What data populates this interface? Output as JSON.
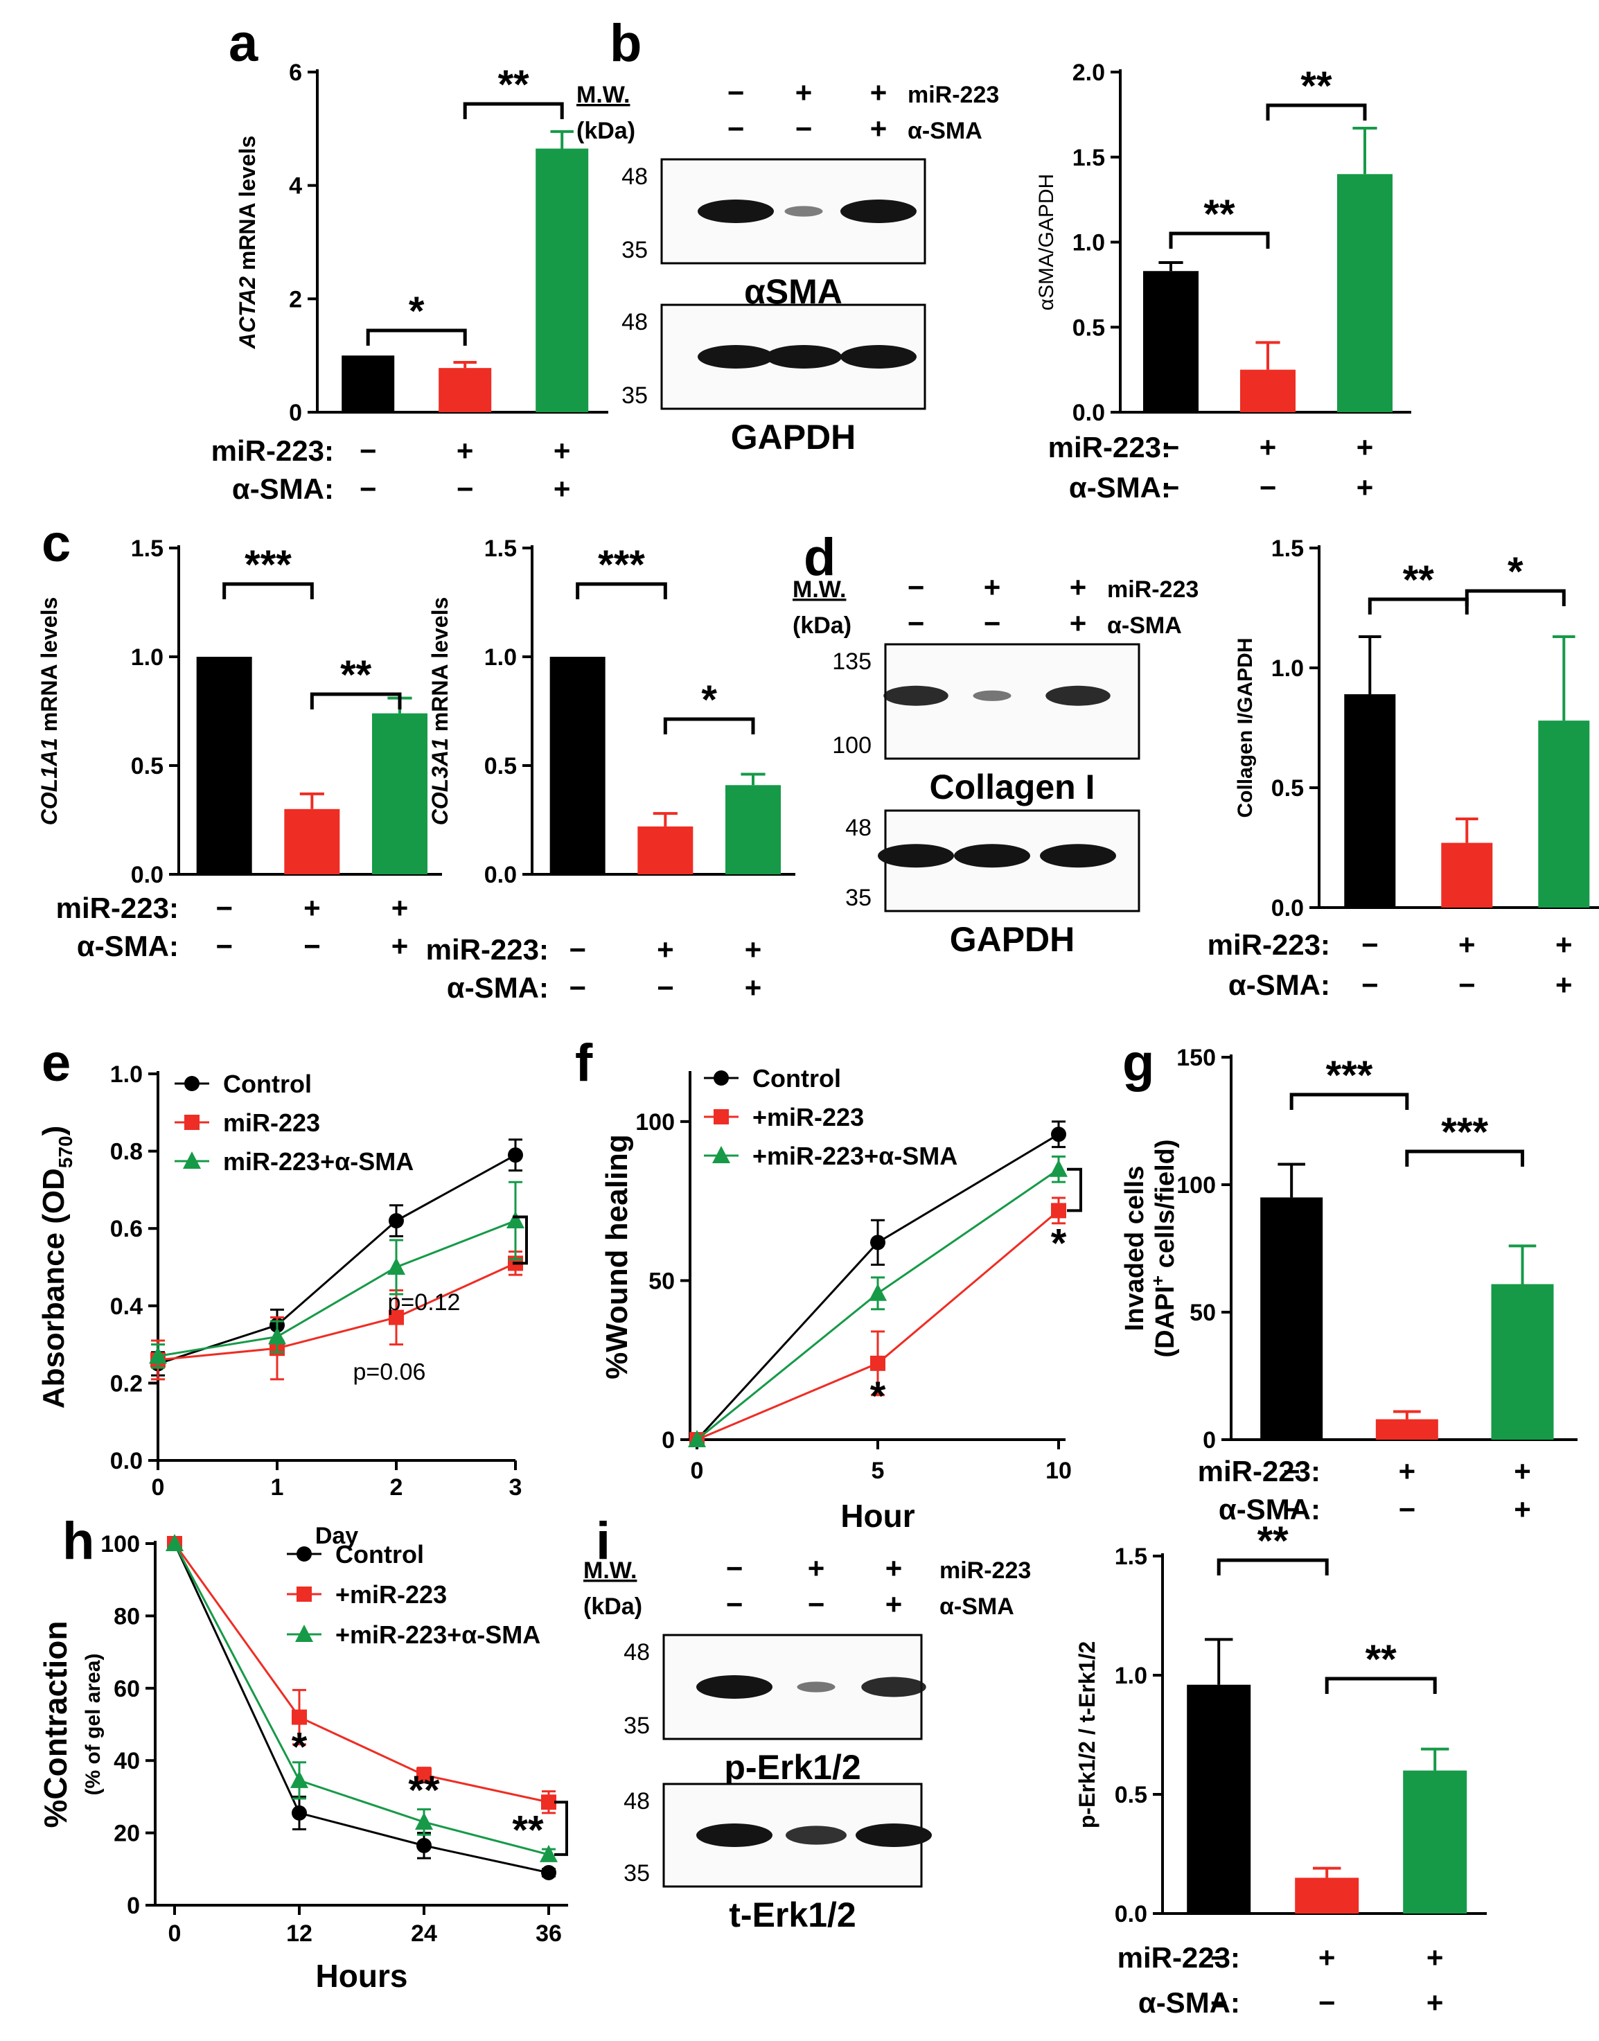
{
  "colors": {
    "black": "#000000",
    "red": "#ee2d24",
    "green": "#169a48",
    "blot_band": "#141414"
  },
  "panel_labels": [
    "a",
    "b",
    "c",
    "d",
    "e",
    "f",
    "g",
    "h",
    "i"
  ],
  "conditions": {
    "mir223_label": "miR-223:",
    "asma_label": "α-SMA:",
    "mir223_signs": [
      "−",
      "+",
      "+"
    ],
    "asma_signs": [
      "−",
      "−",
      "+"
    ]
  },
  "blots": {
    "mw_label": "M.W.",
    "kda_label": "(kDa)",
    "row_mir223": "miR-223",
    "row_asma": "α-SMA",
    "b": {
      "top_name": "αSMA",
      "bottom_name": "GAPDH",
      "top_mw": [
        "48",
        "35"
      ],
      "bottom_mw": [
        "48",
        "35"
      ],
      "top_intensity": [
        1.0,
        0.3,
        1.0
      ],
      "bottom_intensity": [
        1.0,
        1.0,
        1.0
      ]
    },
    "d": {
      "top_name": "Collagen I",
      "bottom_name": "GAPDH",
      "top_mw": [
        "135",
        "100"
      ],
      "bottom_mw": [
        "48",
        "35"
      ],
      "top_intensity": [
        0.85,
        0.35,
        0.85
      ],
      "bottom_intensity": [
        1.0,
        1.0,
        1.0
      ]
    },
    "i": {
      "top_name": "p-Erk1/2",
      "bottom_name": "t-Erk1/2",
      "top_mw": [
        "48",
        "35"
      ],
      "bottom_mw": [
        "48",
        "35"
      ],
      "top_intensity": [
        1.0,
        0.35,
        0.85
      ],
      "bottom_intensity": [
        1.0,
        0.8,
        1.0
      ]
    }
  },
  "chart_data": [
    {
      "id": "a",
      "type": "bar",
      "categories": [
        "Control",
        "miR-223",
        "miR-223+α-SMA"
      ],
      "values": [
        1.0,
        0.78,
        4.65
      ],
      "errors": [
        0.0,
        0.1,
        0.3
      ],
      "ylabel_italic": "ACTA2",
      "ylabel_rest": " mRNA levels",
      "ylim": [
        0,
        6
      ],
      "yticks": [
        "0",
        "2",
        "4",
        "6"
      ],
      "brackets": [
        {
          "from": 0,
          "to": 1,
          "label": "*"
        },
        {
          "from": 1,
          "to": 2,
          "label": "**"
        }
      ]
    },
    {
      "id": "b",
      "type": "bar",
      "categories": [
        "Control",
        "miR-223",
        "miR-223+α-SMA"
      ],
      "values": [
        0.83,
        0.25,
        1.4
      ],
      "errors": [
        0.05,
        0.16,
        0.27
      ],
      "ylabel_italic": "",
      "ylabel_rest": "αSMA/GAPDH",
      "ylim": [
        0,
        2
      ],
      "yticks": [
        "0.0",
        "0.5",
        "1.0",
        "1.5",
        "2.0"
      ],
      "brackets": [
        {
          "from": 0,
          "to": 1,
          "label": "**"
        },
        {
          "from": 1,
          "to": 2,
          "label": "**"
        }
      ]
    },
    {
      "id": "c1",
      "type": "bar",
      "categories": [
        "Control",
        "miR-223",
        "miR-223+α-SMA"
      ],
      "values": [
        1.0,
        0.3,
        0.74
      ],
      "errors": [
        0.0,
        0.07,
        0.07
      ],
      "ylabel_italic": "COL1A1",
      "ylabel_rest": " mRNA levels",
      "ylim": [
        0,
        1.5
      ],
      "yticks": [
        "0.0",
        "0.5",
        "1.0",
        "1.5"
      ],
      "brackets": [
        {
          "from": 0,
          "to": 1,
          "label": "***"
        },
        {
          "from": 1,
          "to": 2,
          "label": "**"
        }
      ]
    },
    {
      "id": "c2",
      "type": "bar",
      "categories": [
        "Control",
        "miR-223",
        "miR-223+α-SMA"
      ],
      "values": [
        1.0,
        0.22,
        0.41
      ],
      "errors": [
        0.0,
        0.06,
        0.05
      ],
      "ylabel_italic": "COL3A1",
      "ylabel_rest": " mRNA levels",
      "ylim": [
        0,
        1.5
      ],
      "yticks": [
        "0.0",
        "0.5",
        "1.0",
        "1.5"
      ],
      "brackets": [
        {
          "from": 0,
          "to": 1,
          "label": "***"
        },
        {
          "from": 1,
          "to": 2,
          "label": "*"
        }
      ]
    },
    {
      "id": "d",
      "type": "bar",
      "categories": [
        "Control",
        "miR-223",
        "miR-223+α-SMA"
      ],
      "values": [
        0.89,
        0.27,
        0.78
      ],
      "errors": [
        0.24,
        0.1,
        0.35
      ],
      "ylabel_italic": "",
      "ylabel_rest": "Collagen I/GAPDH",
      "ylim": [
        0,
        1.5
      ],
      "yticks": [
        "0.0",
        "0.5",
        "1.0",
        "1.5"
      ],
      "brackets": [
        {
          "from": 0,
          "to": 1,
          "label": "**"
        },
        {
          "from": 1,
          "to": 2,
          "label": "*"
        }
      ]
    },
    {
      "id": "e",
      "type": "line",
      "x": [
        0,
        1,
        2,
        3
      ],
      "xticks": [
        "0",
        "1",
        "2",
        "3"
      ],
      "xlabel": "Day",
      "ylabel": "Absorbance (OD",
      "ylabel_sub": "570",
      "ylabel_end": ")",
      "ylim": [
        0,
        1.0
      ],
      "yticks": [
        "0.0",
        "0.2",
        "0.4",
        "0.6",
        "0.8",
        "1.0"
      ],
      "series": [
        {
          "name": "Control",
          "marker": "circle",
          "values": [
            0.25,
            0.35,
            0.62,
            0.79
          ],
          "errors": [
            0.03,
            0.04,
            0.04,
            0.04
          ]
        },
        {
          "name": "miR-223",
          "marker": "square",
          "values": [
            0.26,
            0.29,
            0.37,
            0.51
          ],
          "errors": [
            0.05,
            0.08,
            0.07,
            0.03
          ]
        },
        {
          "name": "miR-223+α-SMA",
          "marker": "triangle",
          "values": [
            0.27,
            0.32,
            0.5,
            0.62
          ],
          "errors": [
            0.03,
            0.04,
            0.07,
            0.1
          ]
        }
      ],
      "annotations": [
        "p=0.06",
        "p=0.12"
      ]
    },
    {
      "id": "f",
      "type": "line",
      "x": [
        0,
        5,
        10
      ],
      "xticks": [
        "0",
        "5",
        "10"
      ],
      "xlabel": "Hour",
      "ylabel": "%Wound healing",
      "ylim": [
        0,
        115
      ],
      "yticks": [
        "0",
        "50",
        "100"
      ],
      "series": [
        {
          "name": "Control",
          "marker": "circle",
          "values": [
            0,
            62,
            96
          ],
          "errors": [
            0,
            7,
            4
          ]
        },
        {
          "name": "+miR-223",
          "marker": "square",
          "values": [
            0,
            24,
            72
          ],
          "errors": [
            0,
            10,
            4
          ]
        },
        {
          "name": "+miR-223+α-SMA",
          "marker": "triangle",
          "values": [
            0,
            46,
            85
          ],
          "errors": [
            0,
            5,
            4
          ]
        }
      ],
      "annotations": [
        "*",
        "*"
      ]
    },
    {
      "id": "g",
      "type": "bar",
      "categories": [
        "Control",
        "miR-223",
        "miR-223+α-SMA"
      ],
      "values": [
        95,
        8,
        61
      ],
      "errors": [
        13,
        3,
        15
      ],
      "ylabel_line1": "Invaded cells",
      "ylabel_line2a": "(DAPI",
      "ylabel_sup": "+",
      "ylabel_line2b": " cells/field)",
      "ylim": [
        0,
        150
      ],
      "yticks": [
        "0",
        "50",
        "100",
        "150"
      ],
      "brackets": [
        {
          "from": 0,
          "to": 1,
          "label": "***"
        },
        {
          "from": 1,
          "to": 2,
          "label": "***"
        }
      ]
    },
    {
      "id": "h",
      "type": "line",
      "x": [
        0,
        12,
        24,
        36
      ],
      "xticks": [
        "0",
        "12",
        "24",
        "36"
      ],
      "xlabel": "Hours",
      "ylabel": "%Contraction",
      "ylabel_sub": "(% of gel area)",
      "ylim": [
        0,
        100
      ],
      "yticks": [
        "0",
        "20",
        "40",
        "60",
        "80",
        "100"
      ],
      "series": [
        {
          "name": "Control",
          "marker": "circle",
          "values": [
            100,
            25.5,
            16.5,
            9
          ],
          "errors": [
            0,
            4.5,
            3.5,
            1
          ]
        },
        {
          "name": "+miR-223",
          "marker": "square",
          "values": [
            100,
            52,
            36,
            28.5
          ],
          "errors": [
            0,
            7.5,
            2,
            3
          ]
        },
        {
          "name": "+miR-223+α-SMA",
          "marker": "triangle",
          "values": [
            100,
            34.5,
            23,
            14
          ],
          "errors": [
            0,
            5,
            3.5,
            1.5
          ]
        }
      ],
      "annotations": [
        "*",
        "**",
        "**"
      ]
    },
    {
      "id": "i",
      "type": "bar",
      "categories": [
        "Control",
        "miR-223",
        "miR-223+α-SMA"
      ],
      "values": [
        0.96,
        0.15,
        0.6
      ],
      "errors": [
        0.19,
        0.04,
        0.09
      ],
      "ylabel_italic": "",
      "ylabel_rest": "p-Erk1/2 / t-Erk1/2",
      "ylim": [
        0,
        1.5
      ],
      "yticks": [
        "0.0",
        "0.5",
        "1.0",
        "1.5"
      ],
      "brackets": [
        {
          "from": 0,
          "to": 1,
          "label": "**"
        },
        {
          "from": 1,
          "to": 2,
          "label": "**"
        }
      ]
    }
  ]
}
